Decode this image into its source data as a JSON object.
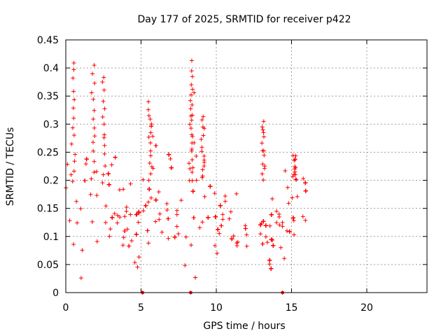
{
  "chart_data": {
    "type": "scatter",
    "title": "Day 177 of 2025, SRMTID for receiver p422",
    "xlabel": "GPS time / hours",
    "ylabel": "SRMTID / TECUs",
    "xlim": [
      0,
      24
    ],
    "ylim": [
      0,
      0.45
    ],
    "x_ticks": [
      0,
      5,
      10,
      15,
      20
    ],
    "x_tick_labels": [
      "0",
      "5",
      "10",
      "15",
      "20"
    ],
    "y_ticks": [
      0,
      0.05,
      0.1,
      0.15,
      0.2,
      0.25,
      0.3,
      0.35,
      0.4,
      0.45
    ],
    "y_tick_labels": [
      "0",
      "0.05",
      "0.1",
      "0.15",
      "0.2",
      "0.25",
      "0.3",
      "0.35",
      "0.4",
      "0.45"
    ],
    "grid": true,
    "marker": "+",
    "colors": {
      "series": "#ff0000",
      "axis": "#000000",
      "grid": "#a0a0a0",
      "background": "#ffffff"
    },
    "envelope_mean": [
      [
        0.0,
        0.2
      ],
      [
        0.5,
        0.16
      ],
      [
        1.0,
        0.14
      ],
      [
        1.5,
        0.16
      ],
      [
        2.0,
        0.16
      ],
      [
        2.5,
        0.15
      ],
      [
        3.0,
        0.14
      ],
      [
        3.5,
        0.12
      ],
      [
        4.0,
        0.12
      ],
      [
        4.5,
        0.12
      ],
      [
        5.0,
        0.13
      ],
      [
        5.5,
        0.17
      ],
      [
        6.0,
        0.17
      ],
      [
        6.5,
        0.16
      ],
      [
        7.0,
        0.15
      ],
      [
        7.5,
        0.14
      ],
      [
        8.0,
        0.13
      ],
      [
        8.5,
        0.15
      ],
      [
        9.0,
        0.15
      ],
      [
        9.5,
        0.13
      ],
      [
        10.0,
        0.12
      ],
      [
        10.5,
        0.11
      ],
      [
        11.0,
        0.1
      ],
      [
        11.5,
        0.095
      ],
      [
        12.0,
        0.085
      ],
      [
        12.5,
        0.09
      ],
      [
        13.0,
        0.1
      ],
      [
        13.5,
        0.1
      ],
      [
        14.0,
        0.11
      ],
      [
        14.5,
        0.13
      ],
      [
        15.0,
        0.13
      ],
      [
        15.5,
        0.15
      ],
      [
        16.0,
        0.15
      ]
    ],
    "envelope_spread": [
      [
        0.0,
        0.055
      ],
      [
        1.0,
        0.05
      ],
      [
        3.0,
        0.04
      ],
      [
        4.0,
        0.035
      ],
      [
        5.5,
        0.055
      ],
      [
        7.0,
        0.05
      ],
      [
        8.5,
        0.05
      ],
      [
        10.0,
        0.03
      ],
      [
        12.0,
        0.025
      ],
      [
        13.5,
        0.03
      ],
      [
        15.0,
        0.035
      ],
      [
        16.0,
        0.04
      ]
    ],
    "x_range_of_points": [
      0.0,
      16.0
    ],
    "approx_point_count": 2300,
    "spikes": [
      {
        "x": 0.5,
        "y_top": 0.41
      },
      {
        "x": 1.8,
        "y_top": 0.405
      },
      {
        "x": 2.5,
        "y_top": 0.385
      },
      {
        "x": 5.6,
        "y_top": 0.34
      },
      {
        "x": 8.3,
        "y_top": 0.415
      },
      {
        "x": 8.4,
        "y_top": 0.37
      },
      {
        "x": 9.1,
        "y_top": 0.315
      },
      {
        "x": 13.1,
        "y_top": 0.305
      },
      {
        "x": 15.2,
        "y_top": 0.245
      }
    ],
    "low_outliers": [
      {
        "x": 5.1,
        "y": 0.0
      },
      {
        "x": 8.3,
        "y": 0.0
      },
      {
        "x": 14.4,
        "y": 0.0
      }
    ]
  }
}
